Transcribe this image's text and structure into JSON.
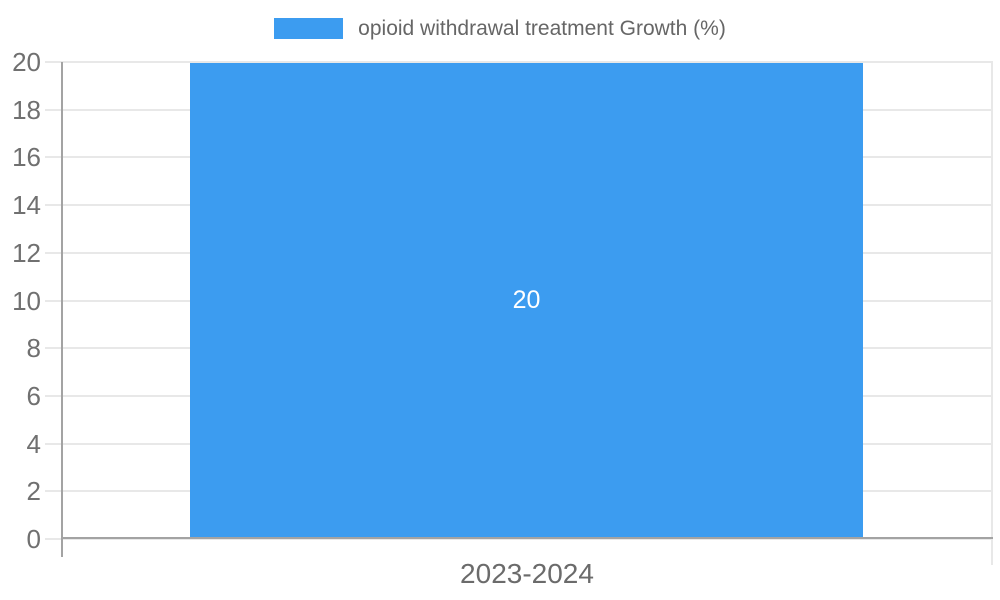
{
  "chart_data": {
    "type": "bar",
    "categories": [
      "2023-2024"
    ],
    "series": [
      {
        "name": "opioid withdrawal treatment Growth (%)",
        "values": [
          20
        ]
      }
    ],
    "title": "",
    "xlabel": "",
    "ylabel": "",
    "ylim": [
      0,
      20
    ],
    "yticks": [
      0,
      2,
      4,
      6,
      8,
      10,
      12,
      14,
      16,
      18,
      20
    ],
    "grid": true,
    "legend_position": "top-center",
    "data_labels": [
      "20"
    ]
  },
  "legend": {
    "label": "opioid withdrawal treatment Growth (%)",
    "swatch_color": "#3c9cf0"
  },
  "bar": {
    "label": "20",
    "color": "#3c9cf0"
  },
  "x_axis": {
    "labels": [
      "2023-2024"
    ]
  },
  "y_axis": {
    "ticks": [
      "20",
      "18",
      "16",
      "14",
      "12",
      "10",
      "8",
      "6",
      "4",
      "2",
      "0"
    ]
  },
  "colors": {
    "bar": "#3c9cf0",
    "grid": "#e8e8e8",
    "axis": "#a3a3a3",
    "tick_text": "#707070",
    "legend_text": "#666666",
    "bar_label_text": "#ffffff"
  }
}
